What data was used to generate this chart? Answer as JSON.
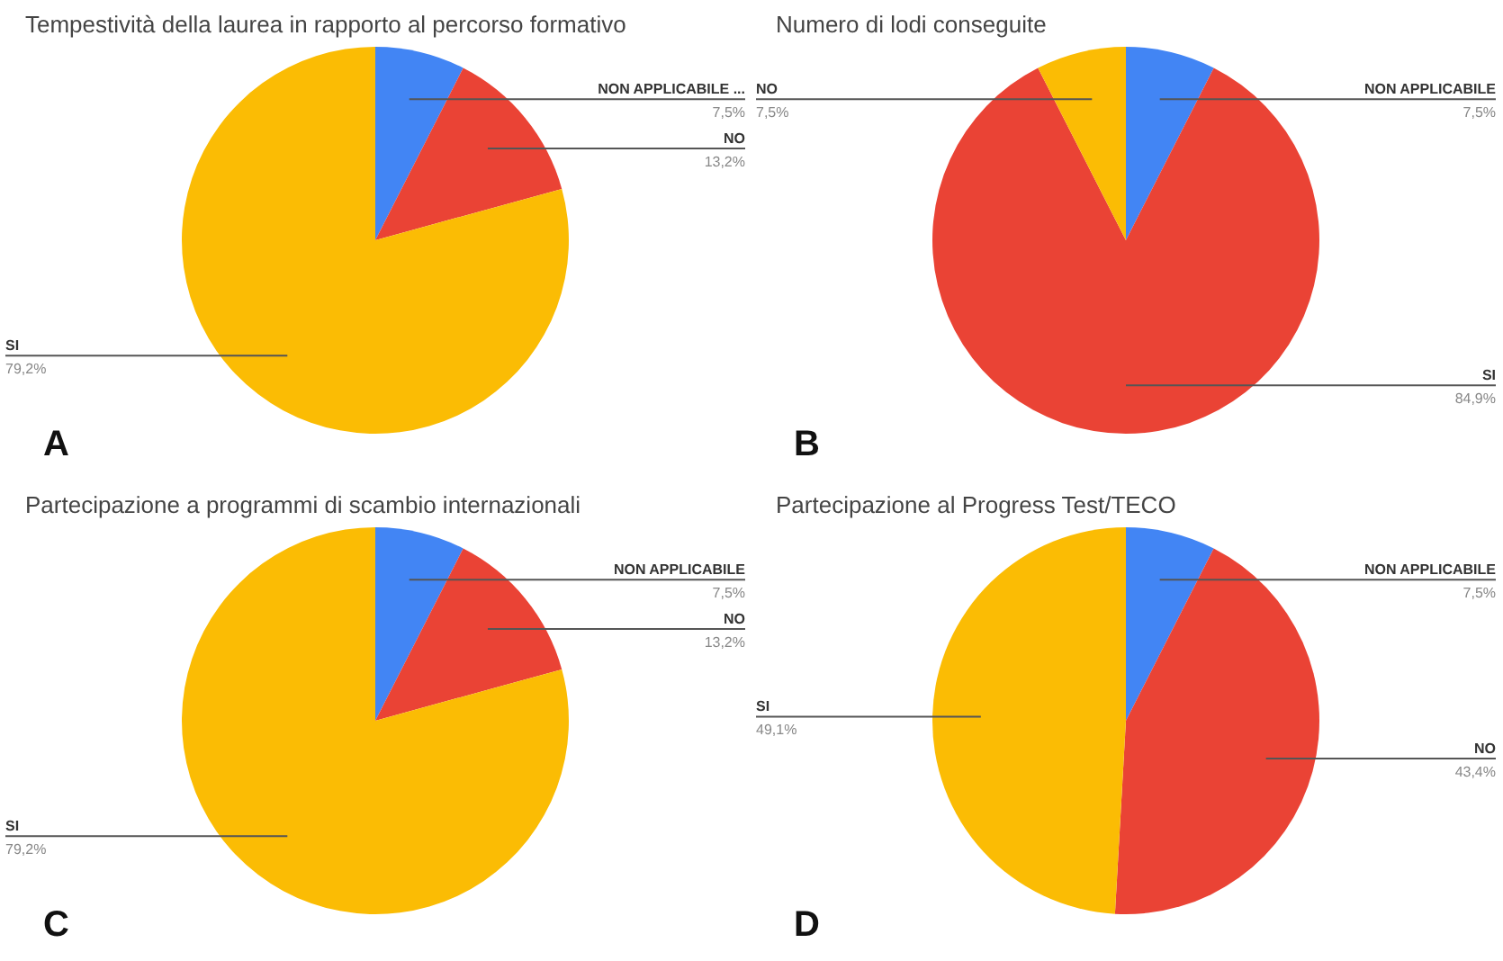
{
  "chart_data": [
    {
      "type": "pie",
      "title": "Tempestività della laurea in rapporto al percorso formativo",
      "categories": [
        "NON APPLICABILE ...",
        "NO",
        "SI"
      ],
      "values": [
        7.5,
        13.2,
        79.2
      ],
      "colors": [
        "#4285f4",
        "#ea4335",
        "#fbbc04"
      ],
      "value_labels": [
        "7,5%",
        "13,2%",
        "79,2%"
      ],
      "legend": false,
      "annotations": [
        "A"
      ]
    },
    {
      "type": "pie",
      "title": "Numero di lodi conseguite",
      "categories": [
        "NON APPLICABILE",
        "SI",
        "NO"
      ],
      "values": [
        7.5,
        84.9,
        7.5
      ],
      "colors": [
        "#4285f4",
        "#ea4335",
        "#fbbc04"
      ],
      "value_labels": [
        "7,5%",
        "84,9%",
        "7,5%"
      ],
      "legend": false,
      "annotations": [
        "B"
      ]
    },
    {
      "type": "pie",
      "title": "Partecipazione a programmi di scambio internazionali",
      "categories": [
        "NON APPLICABILE",
        "NO",
        "SI"
      ],
      "values": [
        7.5,
        13.2,
        79.2
      ],
      "colors": [
        "#4285f4",
        "#ea4335",
        "#fbbc04"
      ],
      "value_labels": [
        "7,5%",
        "13,2%",
        "79,2%"
      ],
      "legend": false,
      "annotations": [
        "C"
      ]
    },
    {
      "type": "pie",
      "title": "Partecipazione al Progress Test/TECO",
      "categories": [
        "NON APPLICABILE",
        "NO",
        "SI"
      ],
      "values": [
        7.5,
        43.4,
        49.1
      ],
      "colors": [
        "#4285f4",
        "#ea4335",
        "#fbbc04"
      ],
      "value_labels": [
        "7,5%",
        "43,4%",
        "49,1%"
      ],
      "legend": false,
      "annotations": [
        "D"
      ]
    }
  ]
}
